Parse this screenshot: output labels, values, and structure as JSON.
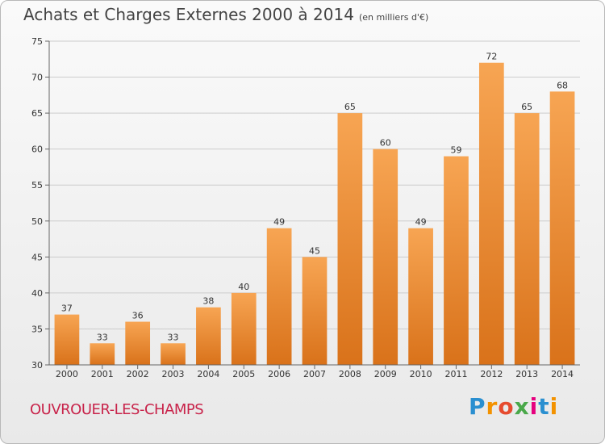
{
  "header": {
    "title": "Achats et Charges Externes 2000 à 2014",
    "unit": "(en milliers d'€)"
  },
  "footer": {
    "place": "OUVROUER-LES-CHAMPS",
    "logo_letters": [
      "P",
      "r",
      "o",
      "x",
      "i",
      "t",
      "i"
    ],
    "logo_colors": [
      "#2a8fd0",
      "#f39200",
      "#e64b2f",
      "#4aa84a",
      "#e6007e",
      "#2a8fd0",
      "#f39200"
    ]
  },
  "colors": {
    "bar_top": "#f7a553",
    "bar_bottom": "#d9721a",
    "grid": "#cccccc",
    "axis_text": "#333333"
  },
  "chart_data": {
    "type": "bar",
    "title": "Achats et Charges Externes 2000 à 2014",
    "subtitle": "(en milliers d'€)",
    "categories": [
      "2000",
      "2001",
      "2002",
      "2003",
      "2004",
      "2005",
      "2006",
      "2007",
      "2008",
      "2009",
      "2010",
      "2011",
      "2012",
      "2013",
      "2014"
    ],
    "values": [
      37,
      33,
      36,
      33,
      38,
      40,
      49,
      45,
      65,
      60,
      49,
      59,
      72,
      65,
      68
    ],
    "ylim": [
      30,
      75
    ],
    "yticks": [
      30,
      35,
      40,
      45,
      50,
      55,
      60,
      65,
      70,
      75
    ],
    "grid": true,
    "data_labels": true
  }
}
